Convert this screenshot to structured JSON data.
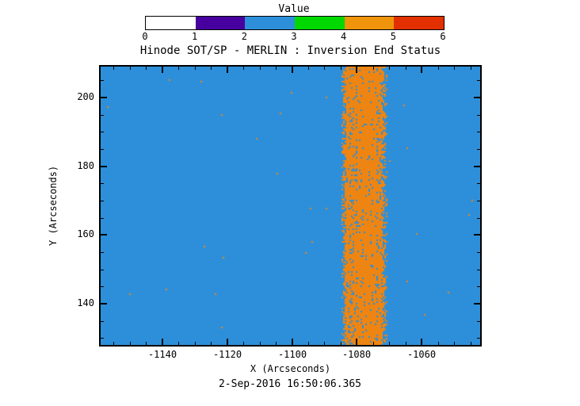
{
  "chart_data": {
    "type": "heatmap",
    "title": "Hinode SOT/SP - MERLIN : Inversion End Status",
    "xlabel": "X (Arcseconds)",
    "ylabel": "Y (Arcseconds)",
    "caption": "2-Sep-2016 16:50:06.365",
    "xlim": [
      -1159,
      -1042
    ],
    "ylim": [
      128,
      209
    ],
    "x_ticks": [
      -1140,
      -1120,
      -1100,
      -1080,
      -1060
    ],
    "y_ticks": [
      140,
      160,
      180,
      200
    ],
    "x_minor_step": 5,
    "y_minor_step": 5,
    "grid": false,
    "colorbar": {
      "label": "Value",
      "position": "top",
      "tick_labels": [
        0,
        1,
        2,
        3,
        4,
        5,
        6
      ],
      "segment_colors": [
        "#ffffff",
        "#47009f",
        "#2d8fd9",
        "#00d800",
        "#f0940c",
        "#e23000"
      ]
    },
    "background": {
      "value": 2,
      "color": "#2d8fd9"
    },
    "band": {
      "value": 5,
      "color": "#ee8512",
      "x_range": [
        -1085.2,
        -1070.8
      ],
      "edge_ramp_arcsec": 2.0,
      "core_fill_fraction": 0.86
    },
    "sparse_speckle_fraction": 0.0008
  }
}
